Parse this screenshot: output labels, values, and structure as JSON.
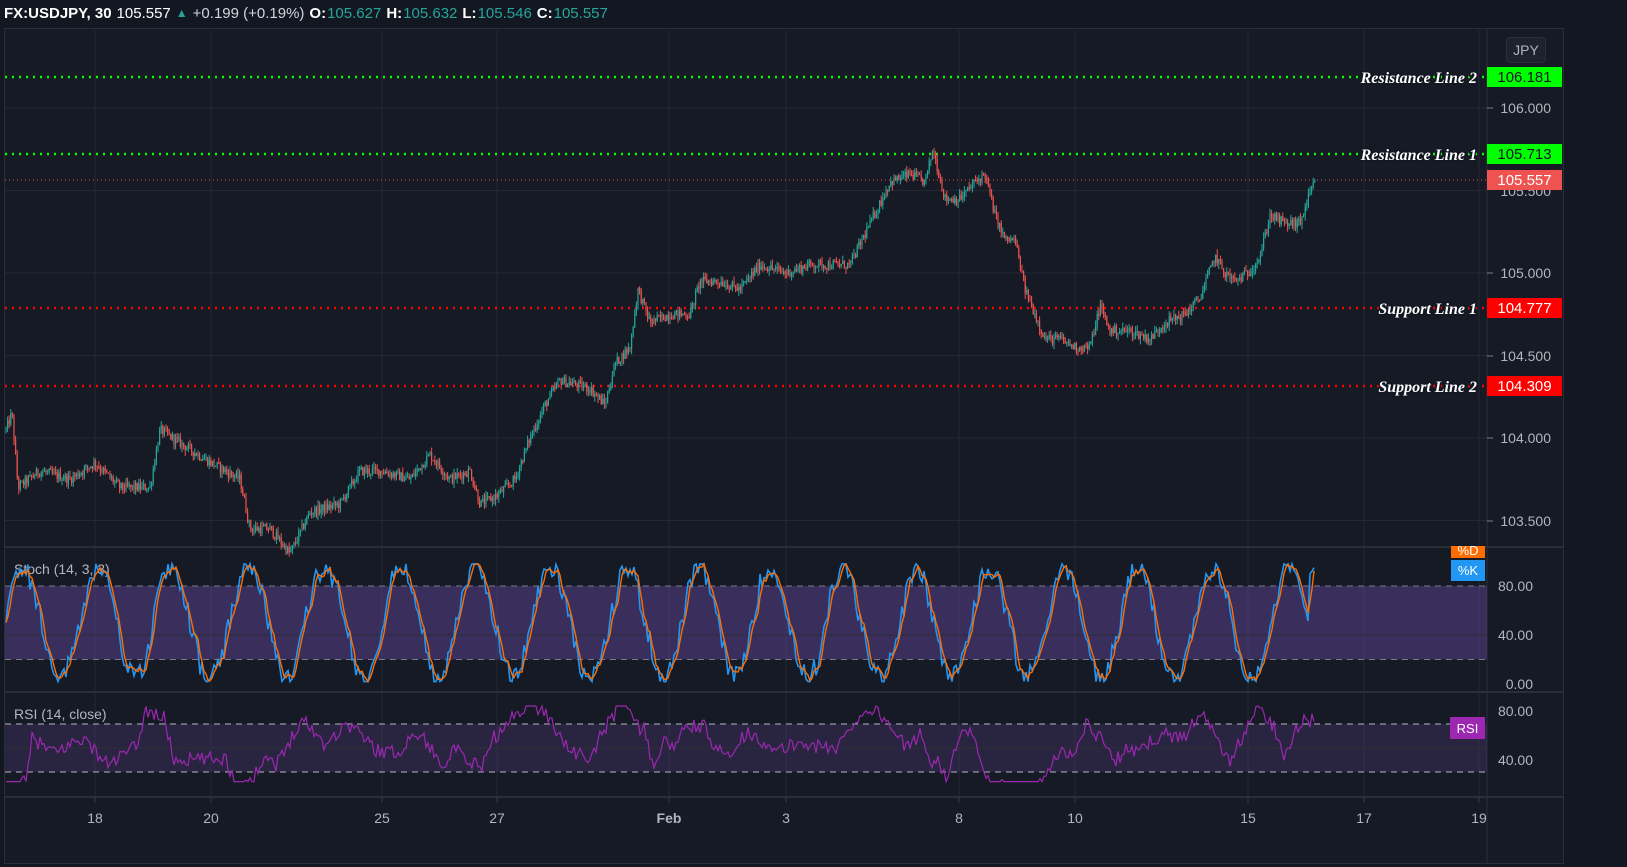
{
  "header": {
    "symbol": "FX:USDJPY, 30",
    "last": "105.557",
    "arrow_icon": "triangle-up-icon",
    "change": "+0.199 (+0.19%)",
    "open_label": "O:",
    "open": "105.627",
    "high_label": "H:",
    "high": "105.632",
    "low_label": "L:",
    "low": "105.546",
    "close_label": "C:",
    "close": "105.557"
  },
  "currency_button": "JPY",
  "price_axis": {
    "ticks": [
      "106.000",
      "105.500",
      "105.000",
      "104.500",
      "104.000",
      "103.500"
    ]
  },
  "levels": [
    {
      "name": "Resistance Line 2",
      "value": "106.181",
      "color": "#00ff00",
      "text_color": "#131722"
    },
    {
      "name": "Resistance Line 1",
      "value": "105.713",
      "color": "#00ff00",
      "text_color": "#131722"
    },
    {
      "name": "Support Line 1",
      "value": "104.777",
      "color": "#ff0000",
      "text_color": "#ffffff"
    },
    {
      "name": "Support Line 2",
      "value": "104.309",
      "color": "#ff0000",
      "text_color": "#ffffff"
    }
  ],
  "current_price_tag": {
    "value": "105.557",
    "color": "#ef5350"
  },
  "stoch": {
    "title": "Stoch (14, 3, 3)",
    "ticks": [
      "80.00",
      "40.00",
      "0.00"
    ],
    "tag_d": "%D",
    "tag_k": "%K",
    "k_color": "#2196f3",
    "d_color": "#ff6d00",
    "band_color": "#7e57c2"
  },
  "rsi": {
    "title": "RSI (14, close)",
    "ticks": [
      "80.00",
      "40.00"
    ],
    "tag": "RSI",
    "line_color": "#9c27b0"
  },
  "time_axis": {
    "ticks": [
      "18",
      "20",
      "25",
      "27",
      "Feb",
      "3",
      "8",
      "10",
      "15",
      "17",
      "19"
    ]
  },
  "colors": {
    "up": "#26a69a",
    "down": "#ef5350",
    "background": "#161a25",
    "grid": "#242833"
  },
  "chart_data": {
    "type": "candlestick",
    "title": "FX:USDJPY, 30",
    "interval": "30 min",
    "xlabel": "",
    "ylabel": "JPY",
    "ylim": [
      103.25,
      106.3
    ],
    "x_ticks": [
      "18",
      "20",
      "25",
      "27",
      "Feb",
      "3",
      "8",
      "10",
      "15",
      "17",
      "19"
    ],
    "y_ticks": [
      103.5,
      104.0,
      104.5,
      105.0,
      105.5,
      106.0
    ],
    "approx_close_path": [
      {
        "x": "Jan 15",
        "y": 104.05
      },
      {
        "x": "Jan 15.5",
        "y": 103.75
      },
      {
        "x": "Jan 18",
        "y": 103.8
      },
      {
        "x": "Jan 19",
        "y": 103.7
      },
      {
        "x": "Jan 19.5",
        "y": 104.05
      },
      {
        "x": "Jan 20",
        "y": 103.9
      },
      {
        "x": "Jan 21",
        "y": 103.5
      },
      {
        "x": "Jan 22",
        "y": 103.35
      },
      {
        "x": "Jan 24",
        "y": 103.75
      },
      {
        "x": "Jan 25",
        "y": 103.8
      },
      {
        "x": "Jan 26",
        "y": 103.75
      },
      {
        "x": "Jan 27",
        "y": 103.65
      },
      {
        "x": "Jan 28",
        "y": 104.35
      },
      {
        "x": "Jan 29",
        "y": 104.3
      },
      {
        "x": "Feb 1",
        "y": 104.8
      },
      {
        "x": "Feb 2",
        "y": 104.95
      },
      {
        "x": "Feb 3",
        "y": 105.05
      },
      {
        "x": "Feb 4",
        "y": 105.05
      },
      {
        "x": "Feb 5",
        "y": 105.5
      },
      {
        "x": "Feb 7.5",
        "y": 105.7
      },
      {
        "x": "Feb 8",
        "y": 105.45
      },
      {
        "x": "Feb 8.5",
        "y": 105.6
      },
      {
        "x": "Feb 9",
        "y": 105.2
      },
      {
        "x": "Feb 9.5",
        "y": 104.6
      },
      {
        "x": "Feb 10",
        "y": 104.55
      },
      {
        "x": "Feb 11",
        "y": 104.65
      },
      {
        "x": "Feb 12",
        "y": 104.75
      },
      {
        "x": "Feb 14",
        "y": 105.1
      },
      {
        "x": "Feb 15",
        "y": 105.0
      },
      {
        "x": "Feb 15.5",
        "y": 105.35
      },
      {
        "x": "Feb 16",
        "y": 105.557
      }
    ],
    "horizontal_lines": [
      {
        "label": "Resistance Line 2",
        "y": 106.181
      },
      {
        "label": "Resistance Line 1",
        "y": 105.713
      },
      {
        "label": "Support Line 1",
        "y": 104.777
      },
      {
        "label": "Support Line 2",
        "y": 104.309
      }
    ],
    "last_price": 105.557,
    "indicators": [
      {
        "name": "Stoch (14, 3, 3)",
        "series": [
          "%K",
          "%D"
        ],
        "bands": [
          80,
          20
        ],
        "ylim": [
          0,
          100
        ],
        "last_k": 95,
        "last_d": 92
      },
      {
        "name": "RSI (14, close)",
        "bands": [
          70,
          30
        ],
        "ylim": [
          20,
          90
        ],
        "last": 73
      }
    ]
  }
}
